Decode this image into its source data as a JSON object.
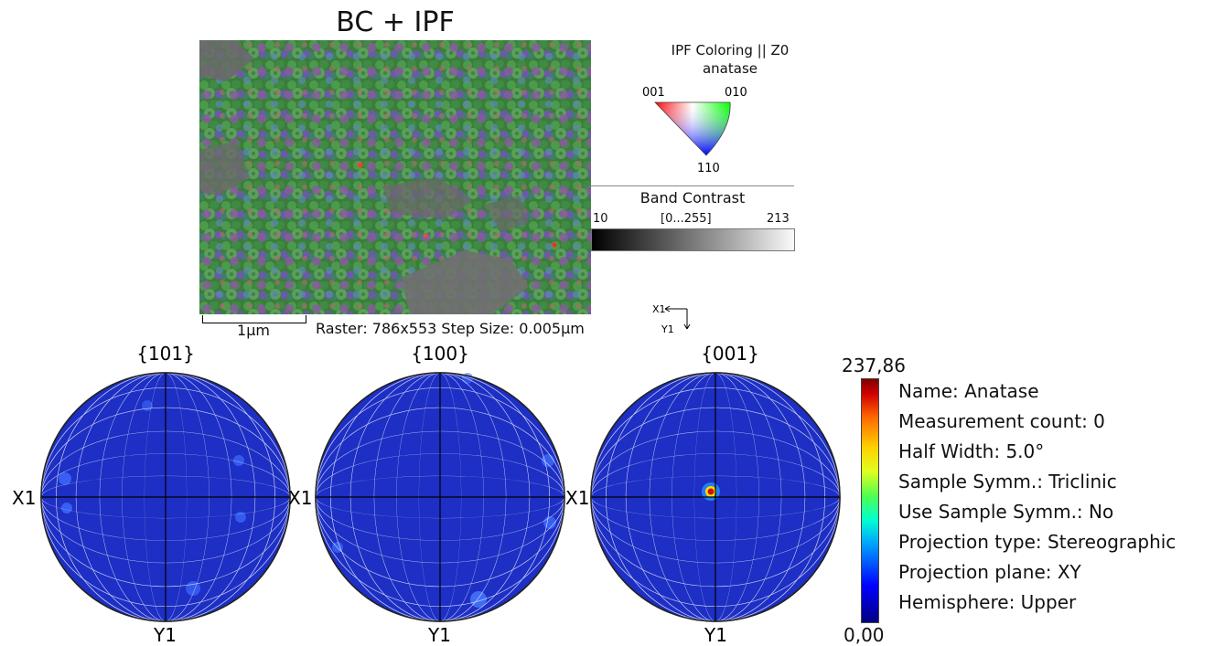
{
  "map": {
    "title": "BC + IPF",
    "scale_label": "1µm",
    "raster_info": "Raster: 786x553   Step Size: 0.005µm",
    "axis_x": "X1",
    "axis_y": "Y1"
  },
  "ipf_key": {
    "title": "IPF Coloring || Z0",
    "phase": "anatase",
    "corner_001": "001",
    "corner_010": "010",
    "corner_110": "110"
  },
  "band_contrast": {
    "title": "Band Contrast",
    "min": "10",
    "range": "[0...255]",
    "max": "213"
  },
  "pole_figures": [
    {
      "label": "{101}",
      "x_axis": "X1",
      "y_axis": "Y1"
    },
    {
      "label": "{100}",
      "x_axis": "X1",
      "y_axis": "Y1"
    },
    {
      "label": "{001}",
      "x_axis": "X1",
      "y_axis": "Y1"
    }
  ],
  "colorbar": {
    "max": "237,86",
    "min": "0,00"
  },
  "info": [
    "Name: Anatase",
    "Measurement count: 0",
    "Half Width: 5.0°",
    "Sample Symm.: Triclinic",
    "Use Sample Symm.: No",
    "Projection type: Stereographic",
    "Projection plane: XY",
    "Hemisphere: Upper"
  ],
  "colors": {
    "pf_fill": "#1d2fc4",
    "grain_green": "#3f8f3f",
    "grain_purple": "#7a5aa8",
    "background_grey": "#6a6a6a"
  }
}
